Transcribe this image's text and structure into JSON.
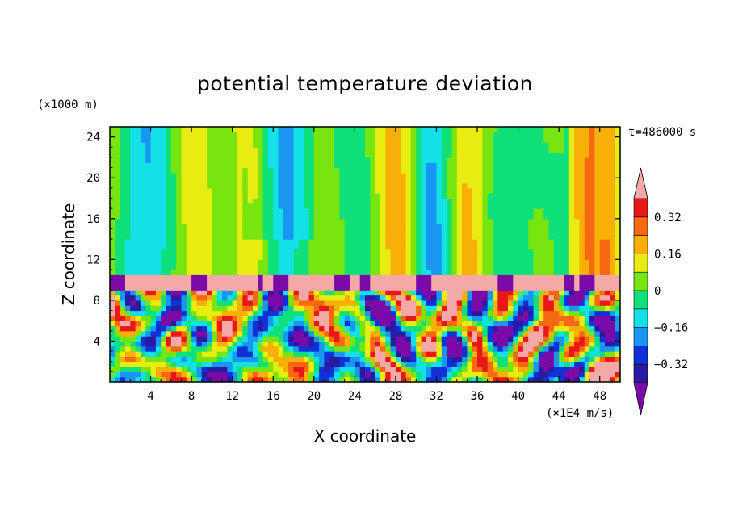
{
  "chart_data": {
    "type": "heatmap",
    "title": "potential temperature deviation",
    "xlabel": "X coordinate",
    "ylabel": "Z coordinate",
    "x_unit": "(×1E4 m/s)",
    "y_unit": "(×1000 m)",
    "time_label": "t=486000 s",
    "xlim": [
      0,
      50
    ],
    "ylim": [
      0,
      25
    ],
    "x_ticks": [
      4,
      8,
      12,
      16,
      20,
      24,
      28,
      32,
      36,
      40,
      44,
      48
    ],
    "y_ticks": [
      4,
      8,
      12,
      16,
      20,
      24
    ],
    "colorbar": {
      "ticks": [
        {
          "value": 0.32,
          "label": "0.32"
        },
        {
          "value": 0.16,
          "label": "0.16"
        },
        {
          "value": 0,
          "label": "0"
        },
        {
          "value": -0.16,
          "label": "−0.16"
        },
        {
          "value": -0.32,
          "label": "−0.32"
        }
      ],
      "levels": [
        -0.4,
        -0.32,
        -0.24,
        -0.16,
        -0.08,
        0,
        0.08,
        0.16,
        0.24,
        0.32,
        0.4
      ],
      "colors": [
        "#7b0aa8",
        "#2a1aa0",
        "#1030d8",
        "#1896f0",
        "#14e0e8",
        "#10e07a",
        "#78e410",
        "#e8ec10",
        "#f8b008",
        "#f86810",
        "#e81818",
        "#f4a8a8"
      ],
      "extend": "both"
    },
    "layers": {
      "turbulent_layer_z": [
        0,
        9
      ],
      "pink_band_z": [
        9,
        10.5
      ],
      "upper_layer_z": [
        10.5,
        25
      ]
    }
  }
}
